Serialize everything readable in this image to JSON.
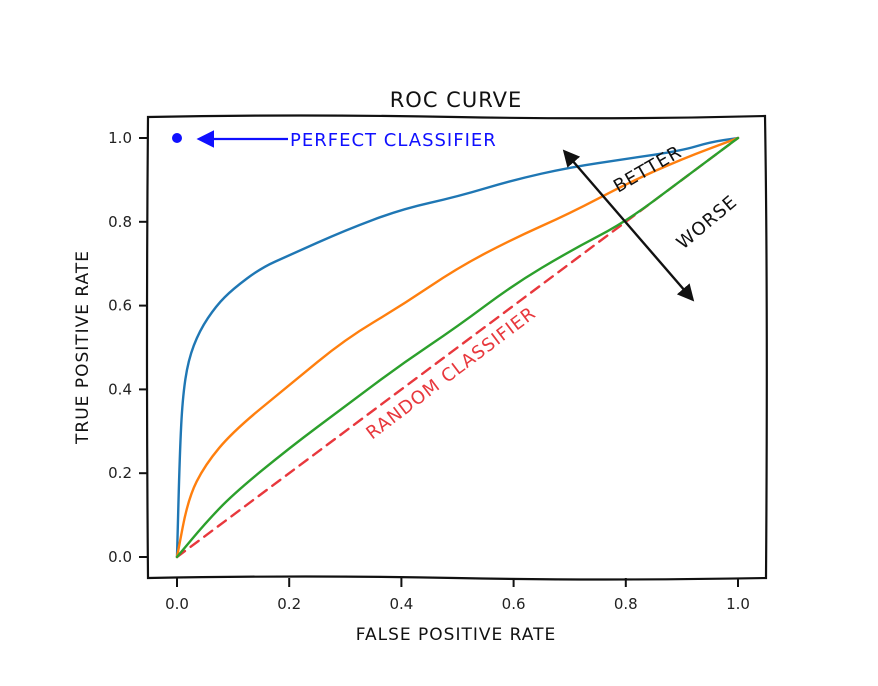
{
  "chart_data": {
    "type": "line",
    "title": "ROC CURVE",
    "xlabel": "FALSE POSITIVE RATE",
    "ylabel": "TRUE POSITIVE RATE",
    "xlim": [
      -0.05,
      1.05
    ],
    "ylim": [
      -0.05,
      1.05
    ],
    "xticks": [
      0.0,
      0.2,
      0.4,
      0.6,
      0.8,
      1.0
    ],
    "yticks": [
      0.0,
      0.2,
      0.4,
      0.6,
      0.8,
      1.0
    ],
    "xtick_labels": [
      "0.0",
      "0.2",
      "0.4",
      "0.6",
      "0.8",
      "1.0"
    ],
    "ytick_labels": [
      "0.0",
      "0.2",
      "0.4",
      "0.6",
      "0.8",
      "1.0"
    ],
    "grid": false,
    "legend": "none",
    "series": [
      {
        "color": "#1f77b4",
        "style": "solid",
        "x": [
          0.0,
          0.005,
          0.01,
          0.02,
          0.04,
          0.07,
          0.1,
          0.15,
          0.2,
          0.3,
          0.4,
          0.5,
          0.6,
          0.7,
          0.8,
          0.9,
          0.95,
          1.0
        ],
        "y": [
          0.0,
          0.25,
          0.38,
          0.47,
          0.54,
          0.6,
          0.64,
          0.69,
          0.72,
          0.78,
          0.83,
          0.86,
          0.9,
          0.93,
          0.95,
          0.97,
          0.99,
          1.0
        ]
      },
      {
        "color": "#ff7f0e",
        "style": "solid",
        "x": [
          0.0,
          0.02,
          0.05,
          0.1,
          0.2,
          0.3,
          0.4,
          0.5,
          0.6,
          0.7,
          0.8,
          0.9,
          1.0
        ],
        "y": [
          0.0,
          0.14,
          0.22,
          0.3,
          0.41,
          0.52,
          0.6,
          0.69,
          0.76,
          0.82,
          0.89,
          0.95,
          1.0
        ]
      },
      {
        "color": "#2ca02c",
        "style": "solid",
        "x": [
          0.0,
          0.05,
          0.1,
          0.2,
          0.3,
          0.4,
          0.5,
          0.6,
          0.7,
          0.8,
          0.9,
          1.0
        ],
        "y": [
          0.0,
          0.08,
          0.15,
          0.26,
          0.36,
          0.46,
          0.55,
          0.65,
          0.73,
          0.8,
          0.9,
          1.0
        ]
      },
      {
        "name": "RANDOM CLASSIFIER",
        "color": "#e8383d",
        "style": "dashed",
        "x": [
          0.0,
          1.0
        ],
        "y": [
          0.0,
          1.0
        ]
      }
    ],
    "points": [
      {
        "name": "PERFECT CLASSIFIER",
        "x": 0.0,
        "y": 1.0,
        "color": "#1010ff"
      }
    ],
    "annotations": [
      {
        "text": "PERFECT CLASSIFIER",
        "color": "#1010ff"
      },
      {
        "text": "RANDOM CLASSIFIER",
        "color": "#e8383d"
      },
      {
        "text": "BETTER",
        "color": "#111111"
      },
      {
        "text": "WORSE",
        "color": "#111111"
      }
    ]
  }
}
